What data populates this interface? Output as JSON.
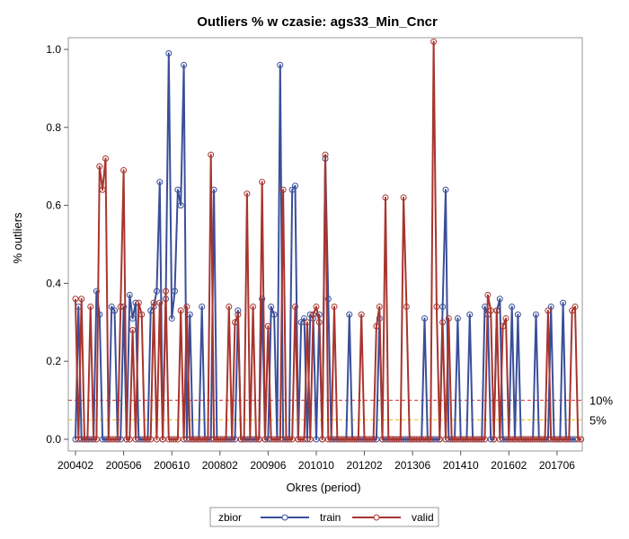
{
  "chart_data": {
    "type": "line",
    "title": "Outliers % w czasie: ags33_Min_Cncr",
    "xlabel": "Okres (period)",
    "ylabel": "% outliers",
    "ylim": [
      -0.03,
      1.03
    ],
    "x_ticks": [
      "200402",
      "200506",
      "200610",
      "200802",
      "200906",
      "201010",
      "201202",
      "201306",
      "201410",
      "201602",
      "201706"
    ],
    "y_ticks": [
      "0.0",
      "0.2",
      "0.4",
      "0.6",
      "0.8",
      "1.0"
    ],
    "y_tick_values": [
      0.0,
      0.2,
      0.4,
      0.6,
      0.8,
      1.0
    ],
    "reference_lines": [
      {
        "value": 0.1,
        "label": "10%",
        "color": "#d62728"
      },
      {
        "value": 0.05,
        "label": "5%",
        "color": "#e8b800"
      }
    ],
    "legend": {
      "title": "zbior",
      "position": "bottom"
    },
    "series": [
      {
        "name": "train",
        "color": "#3a4f9a",
        "values": [
          0,
          0.34,
          0,
          0,
          0,
          0,
          0,
          0.38,
          0.32,
          0,
          0,
          0,
          0.34,
          0.33,
          0,
          0,
          0.34,
          0,
          0.37,
          0.31,
          0.35,
          0,
          0,
          0,
          0,
          0.33,
          0.34,
          0.38,
          0.66,
          0,
          0.36,
          0.99,
          0.31,
          0.38,
          0.64,
          0.6,
          0.96,
          0,
          0.32,
          0,
          0,
          0,
          0.34,
          0,
          0,
          0,
          0.64,
          0,
          0,
          0,
          0,
          0,
          0,
          0,
          0.33,
          0,
          0,
          0,
          0,
          0,
          0,
          0,
          0.36,
          0,
          0,
          0.34,
          0.32,
          0,
          0.96,
          0,
          0,
          0,
          0.64,
          0.65,
          0,
          0.3,
          0.31,
          0,
          0.32,
          0.31,
          0,
          0.32,
          0,
          0.72,
          0.36,
          0,
          0,
          0,
          0,
          0,
          0,
          0.32,
          0,
          0,
          0,
          0,
          0,
          0,
          0,
          0,
          0,
          0.31,
          0,
          0,
          0,
          0,
          0,
          0,
          0,
          0,
          0,
          0,
          0,
          0,
          0,
          0,
          0.31,
          0,
          0,
          0,
          0,
          0,
          0.34,
          0.64,
          0,
          0,
          0,
          0.31,
          0,
          0,
          0,
          0.32,
          0,
          0,
          0,
          0,
          0.34,
          0.32,
          0,
          0,
          0.33,
          0.36,
          0,
          0,
          0,
          0.34,
          0,
          0.32,
          0,
          0,
          0,
          0,
          0,
          0.32,
          0,
          0,
          0,
          0,
          0.34,
          0,
          0,
          0,
          0.35,
          0,
          0,
          0,
          0
        ]
      },
      {
        "name": "valid",
        "color": "#a8352e",
        "values": [
          0.36,
          0,
          0.36,
          0,
          0,
          0.34,
          0,
          0,
          0.7,
          0.64,
          0.72,
          0,
          0,
          0,
          0,
          0.34,
          0.69,
          0,
          0,
          0.28,
          0,
          0.35,
          0.32,
          0,
          0,
          0,
          0.35,
          0,
          0.35,
          0,
          0.38,
          0,
          0,
          0,
          0,
          0.33,
          0,
          0.34,
          0,
          0,
          0,
          0,
          0,
          0,
          0,
          0.73,
          0,
          0,
          0,
          0,
          0,
          0.34,
          0,
          0.3,
          0.32,
          0,
          0,
          0.63,
          0,
          0.34,
          0,
          0,
          0.66,
          0,
          0.29,
          0,
          0,
          0,
          0,
          0.64,
          0,
          0,
          0,
          0.34,
          0,
          0,
          0,
          0.3,
          0,
          0.32,
          0.34,
          0.3,
          0,
          0.73,
          0,
          0,
          0.34,
          0,
          0,
          0,
          0,
          0,
          0,
          0,
          0,
          0.32,
          0,
          0,
          0,
          0,
          0.29,
          0.34,
          0,
          0.62,
          0,
          0,
          0,
          0,
          0,
          0.62,
          0.34,
          0,
          0,
          0,
          0,
          0,
          0,
          0,
          0,
          1.02,
          0.34,
          0,
          0.3,
          0,
          0.31,
          0,
          0,
          0,
          0,
          0,
          0,
          0,
          0,
          0,
          0,
          0,
          0,
          0.37,
          0.33,
          0,
          0.33,
          0,
          0.29,
          0.31,
          0,
          0,
          0,
          0,
          0,
          0,
          0,
          0,
          0,
          0,
          0,
          0,
          0,
          0.33,
          0,
          0,
          0,
          0,
          0,
          0,
          0,
          0.33,
          0.34,
          0,
          0
        ]
      }
    ]
  }
}
